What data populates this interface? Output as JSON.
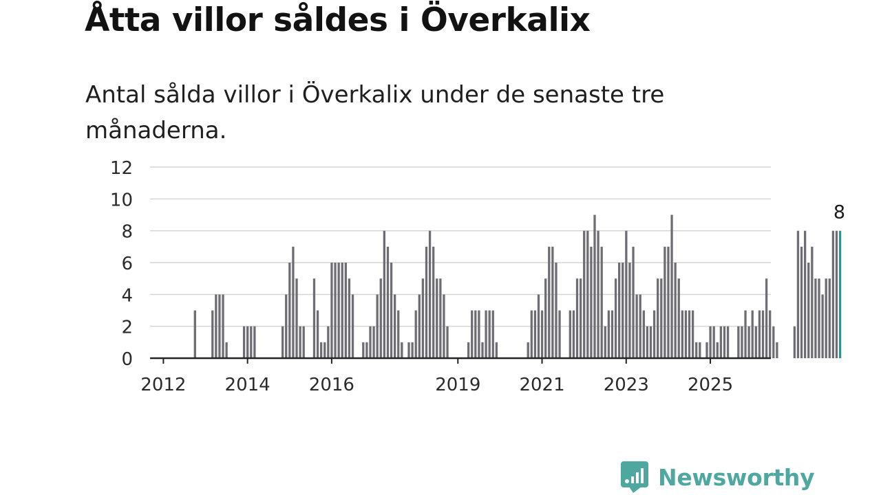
{
  "title": "Åtta villor såldes i Överkalix",
  "subtitle": "Antal sålda villor i Överkalix under de senaste tre månaderna.",
  "brand": {
    "name": "Newsworthy",
    "icon": "newsworthy-logo-icon",
    "color": "#4fa8a0"
  },
  "colors": {
    "bar": "#6e6d73",
    "highlight": "#1a9a94",
    "grid": "#d4d4d4",
    "axis": "#222222"
  },
  "chart_data": {
    "type": "bar",
    "title": "Åtta villor såldes i Överkalix",
    "subtitle": "Antal sålda villor i Överkalix under de senaste tre månaderna.",
    "xlabel": "",
    "ylabel": "",
    "ylim": [
      0,
      12
    ],
    "y_ticks": [
      0,
      2,
      4,
      6,
      8,
      10,
      12
    ],
    "x_tick_labels": [
      "2012",
      "2014",
      "2016",
      "2019",
      "2021",
      "2023",
      "2025"
    ],
    "grid": true,
    "legend": "none",
    "start": "2011-10",
    "values": [
      0,
      0,
      0,
      0,
      0,
      0,
      0,
      0,
      0,
      0,
      0,
      0,
      3,
      0,
      0,
      0,
      0,
      3,
      4,
      4,
      4,
      1,
      0,
      0,
      0,
      0,
      2,
      2,
      2,
      2,
      0,
      0,
      0,
      0,
      0,
      0,
      0,
      2,
      4,
      6,
      7,
      5,
      2,
      2,
      0,
      0,
      5,
      3,
      1,
      1,
      2,
      6,
      6,
      6,
      6,
      6,
      5,
      4,
      0,
      0,
      1,
      1,
      2,
      2,
      4,
      5,
      8,
      7,
      6,
      4,
      3,
      1,
      0,
      1,
      1,
      3,
      4,
      5,
      7,
      8,
      7,
      5,
      5,
      4,
      2,
      0,
      0,
      0,
      0,
      0,
      1,
      3,
      3,
      3,
      1,
      3,
      3,
      3,
      1,
      0,
      0,
      0,
      0,
      0,
      0,
      0,
      0,
      1,
      3,
      3,
      4,
      3,
      5,
      7,
      7,
      6,
      3,
      0,
      0,
      3,
      3,
      5,
      5,
      8,
      8,
      7,
      9,
      8,
      7,
      2,
      3,
      3,
      5,
      6,
      6,
      8,
      6,
      7,
      4,
      4,
      3,
      2,
      2,
      3,
      5,
      5,
      7,
      7,
      9,
      6,
      5,
      3,
      3,
      3,
      3,
      1,
      1,
      0,
      1,
      2,
      2,
      1,
      2,
      2,
      2,
      0,
      0,
      2,
      2,
      3,
      2,
      3,
      2,
      3,
      3,
      5,
      3,
      2,
      1,
      0,
      0,
      0,
      0,
      2,
      8,
      7,
      8,
      6,
      7,
      5,
      5,
      4,
      5,
      5,
      8,
      8,
      8
    ],
    "highlight": {
      "label": "8",
      "value": 8,
      "period": "last"
    }
  }
}
